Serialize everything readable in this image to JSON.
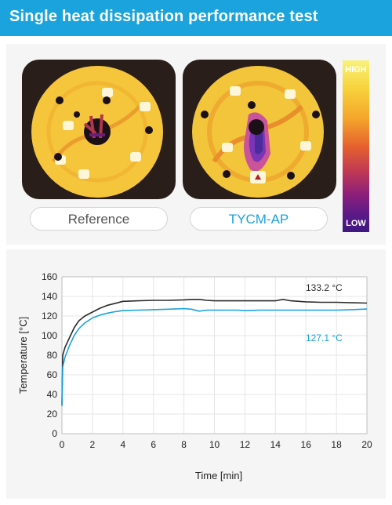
{
  "header": {
    "title": "Single heat dissipation performance test"
  },
  "thermal_images": [
    {
      "label": "Reference"
    },
    {
      "label": "TYCM-AP"
    }
  ],
  "scale": {
    "high_label": "HIGH",
    "low_label": "LOW"
  },
  "colors": {
    "header_bg": "#1aa3dc",
    "reference_series": "#2b2b2b",
    "tycm_series": "#1aa3dc"
  },
  "chart_data": {
    "type": "line",
    "xlabel": "Time [min]",
    "ylabel": "Temperature [°C]",
    "xlim": [
      0,
      20
    ],
    "ylim": [
      0,
      160
    ],
    "xticks": [
      0,
      2,
      4,
      6,
      8,
      10,
      12,
      14,
      16,
      18,
      20
    ],
    "yticks": [
      0,
      20,
      40,
      60,
      80,
      100,
      120,
      140,
      160
    ],
    "grid": true,
    "series": [
      {
        "color": "#2b2b2b",
        "end_label": "133.2 °C",
        "x": [
          0,
          0.05,
          0.2,
          0.5,
          0.8,
          1.1,
          1.5,
          2,
          2.5,
          3,
          3.5,
          4,
          5,
          6,
          7,
          8,
          8.5,
          9,
          9.5,
          10,
          11,
          12,
          13,
          14,
          14.5,
          15,
          16,
          17,
          18,
          19,
          20
        ],
        "y": [
          30,
          80,
          88,
          98,
          108,
          115,
          120,
          124,
          128,
          131,
          133,
          135,
          135.5,
          136,
          136,
          136.5,
          137,
          137,
          136,
          135.5,
          135.5,
          135.5,
          135.5,
          135.5,
          137,
          135.5,
          134.5,
          134,
          134,
          133.5,
          133.2
        ]
      },
      {
        "color": "#1aa3dc",
        "end_label": "127.1 °C",
        "x": [
          0,
          0.05,
          0.2,
          0.5,
          0.8,
          1.1,
          1.5,
          2,
          2.5,
          3,
          3.5,
          4,
          5,
          6,
          7,
          8,
          8.5,
          9,
          9.5,
          10,
          11,
          11.5,
          12,
          13,
          14,
          15,
          16,
          17,
          18,
          19,
          20
        ],
        "y": [
          28,
          68,
          78,
          90,
          100,
          107,
          113,
          118,
          121,
          123,
          124.5,
          125.5,
          126,
          126.5,
          127,
          127.5,
          127,
          125,
          126,
          126,
          126,
          126,
          125.5,
          126,
          126,
          126,
          126,
          126,
          126,
          126.5,
          127.1
        ]
      }
    ]
  }
}
